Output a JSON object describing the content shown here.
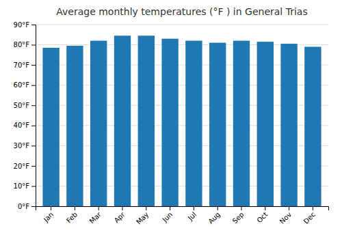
{
  "chart_data": {
    "type": "bar",
    "title": "Average monthly temperatures (°F ) in General Trias",
    "categories": [
      "Jan",
      "Feb",
      "Mar",
      "Apr",
      "May",
      "Jun",
      "Jul",
      "Aug",
      "Sep",
      "Oct",
      "Nov",
      "Dec"
    ],
    "values": [
      78.5,
      79.5,
      82.0,
      84.5,
      84.5,
      83.0,
      82.0,
      81.0,
      82.0,
      81.5,
      80.5,
      79.0
    ],
    "ylim": [
      0,
      90
    ],
    "yticks": [
      {
        "value": 0,
        "label": "0°F"
      },
      {
        "value": 10,
        "label": "10°F"
      },
      {
        "value": 20,
        "label": "20°F"
      },
      {
        "value": 30,
        "label": "30°F"
      },
      {
        "value": 40,
        "label": "40°F"
      },
      {
        "value": 50,
        "label": "50°F"
      },
      {
        "value": 60,
        "label": "60°F"
      },
      {
        "value": 70,
        "label": "70°F"
      },
      {
        "value": 80,
        "label": "80°F"
      },
      {
        "value": 90,
        "label": "90°F"
      }
    ],
    "grid": true
  }
}
